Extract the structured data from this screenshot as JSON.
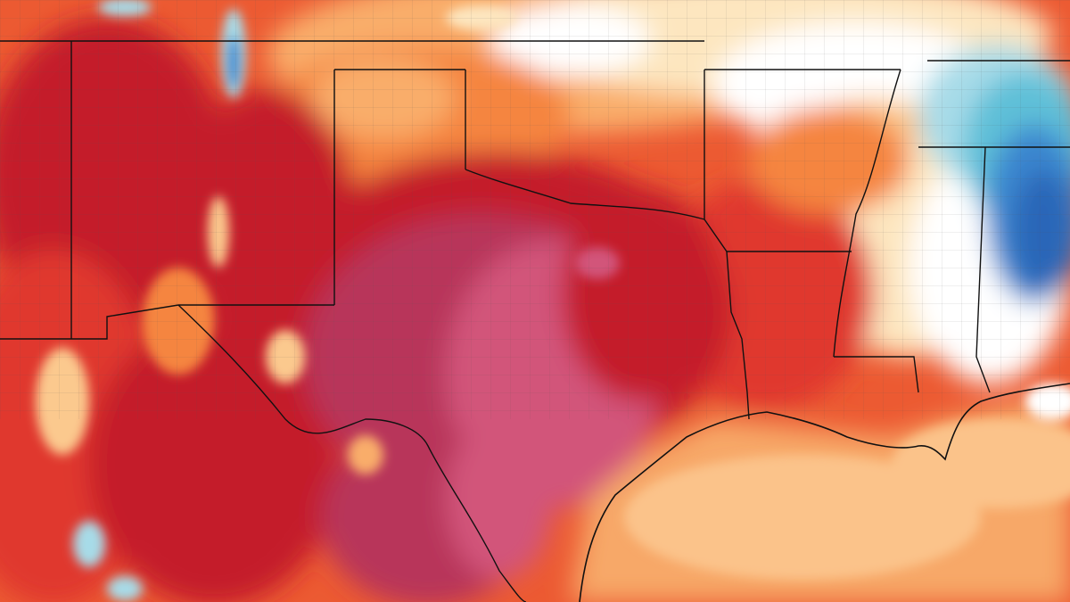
{
  "map": {
    "kind": "temperature-anomaly-heat-map",
    "region_shown": "south-central-united-states-and-gulf-of-mexico",
    "colors": {
      "deep_magenta": "#b8345a",
      "pink_magenta": "#d2547a",
      "dark_red": "#c41f2a",
      "red": "#e0382e",
      "orange_red": "#ec5a32",
      "orange": "#f5853f",
      "light_orange": "#f9ad6a",
      "pale_orange": "#fbc98e",
      "cream": "#fde6bf",
      "white": "#ffffff",
      "light_blue": "#a7dbe8",
      "cyan": "#5fc0d8",
      "blue": "#3a86cf",
      "deep_blue": "#2a66b8",
      "gulf_orange": "#f7a868",
      "gulf_light": "#fbc38a",
      "state_border": "#111111",
      "county_line": "#555555"
    },
    "layers": [
      "heat-shading",
      "county-lines",
      "state-borders",
      "coastline"
    ]
  }
}
